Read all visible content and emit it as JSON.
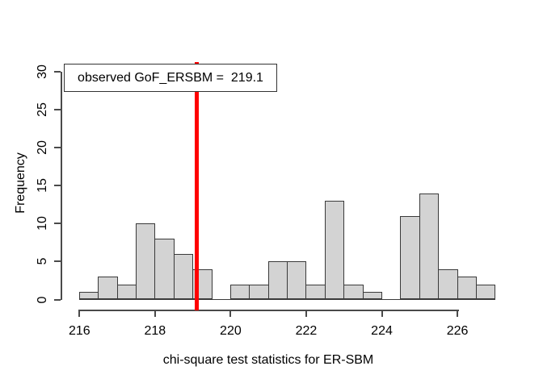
{
  "figure": {
    "background": "#ffffff"
  },
  "chart_data": {
    "type": "bar",
    "subtype": "histogram",
    "title": "",
    "xlabel": "chi-square test statistics for ER-SBM",
    "ylabel": "Frequency",
    "bin_start": 216,
    "bin_width": 0.5,
    "counts": [
      1,
      3,
      2,
      10,
      8,
      6,
      4,
      0,
      2,
      2,
      5,
      5,
      2,
      13,
      2,
      1,
      0,
      11,
      14,
      4,
      3,
      2
    ],
    "x_ticks": [
      216,
      218,
      220,
      222,
      224,
      226
    ],
    "y_ticks": [
      0,
      5,
      10,
      15,
      20,
      25,
      30
    ],
    "xlim": [
      216,
      227
    ],
    "ylim": [
      0,
      30
    ],
    "grid": false,
    "legend_position": "top-left",
    "bar_fill": "#d3d3d3",
    "bar_border": "#3a3a3a",
    "observed_line": {
      "value": 219.1,
      "color": "#ff0000"
    }
  },
  "legend": {
    "label": "observed GoF_ERSBM =  219.1"
  }
}
